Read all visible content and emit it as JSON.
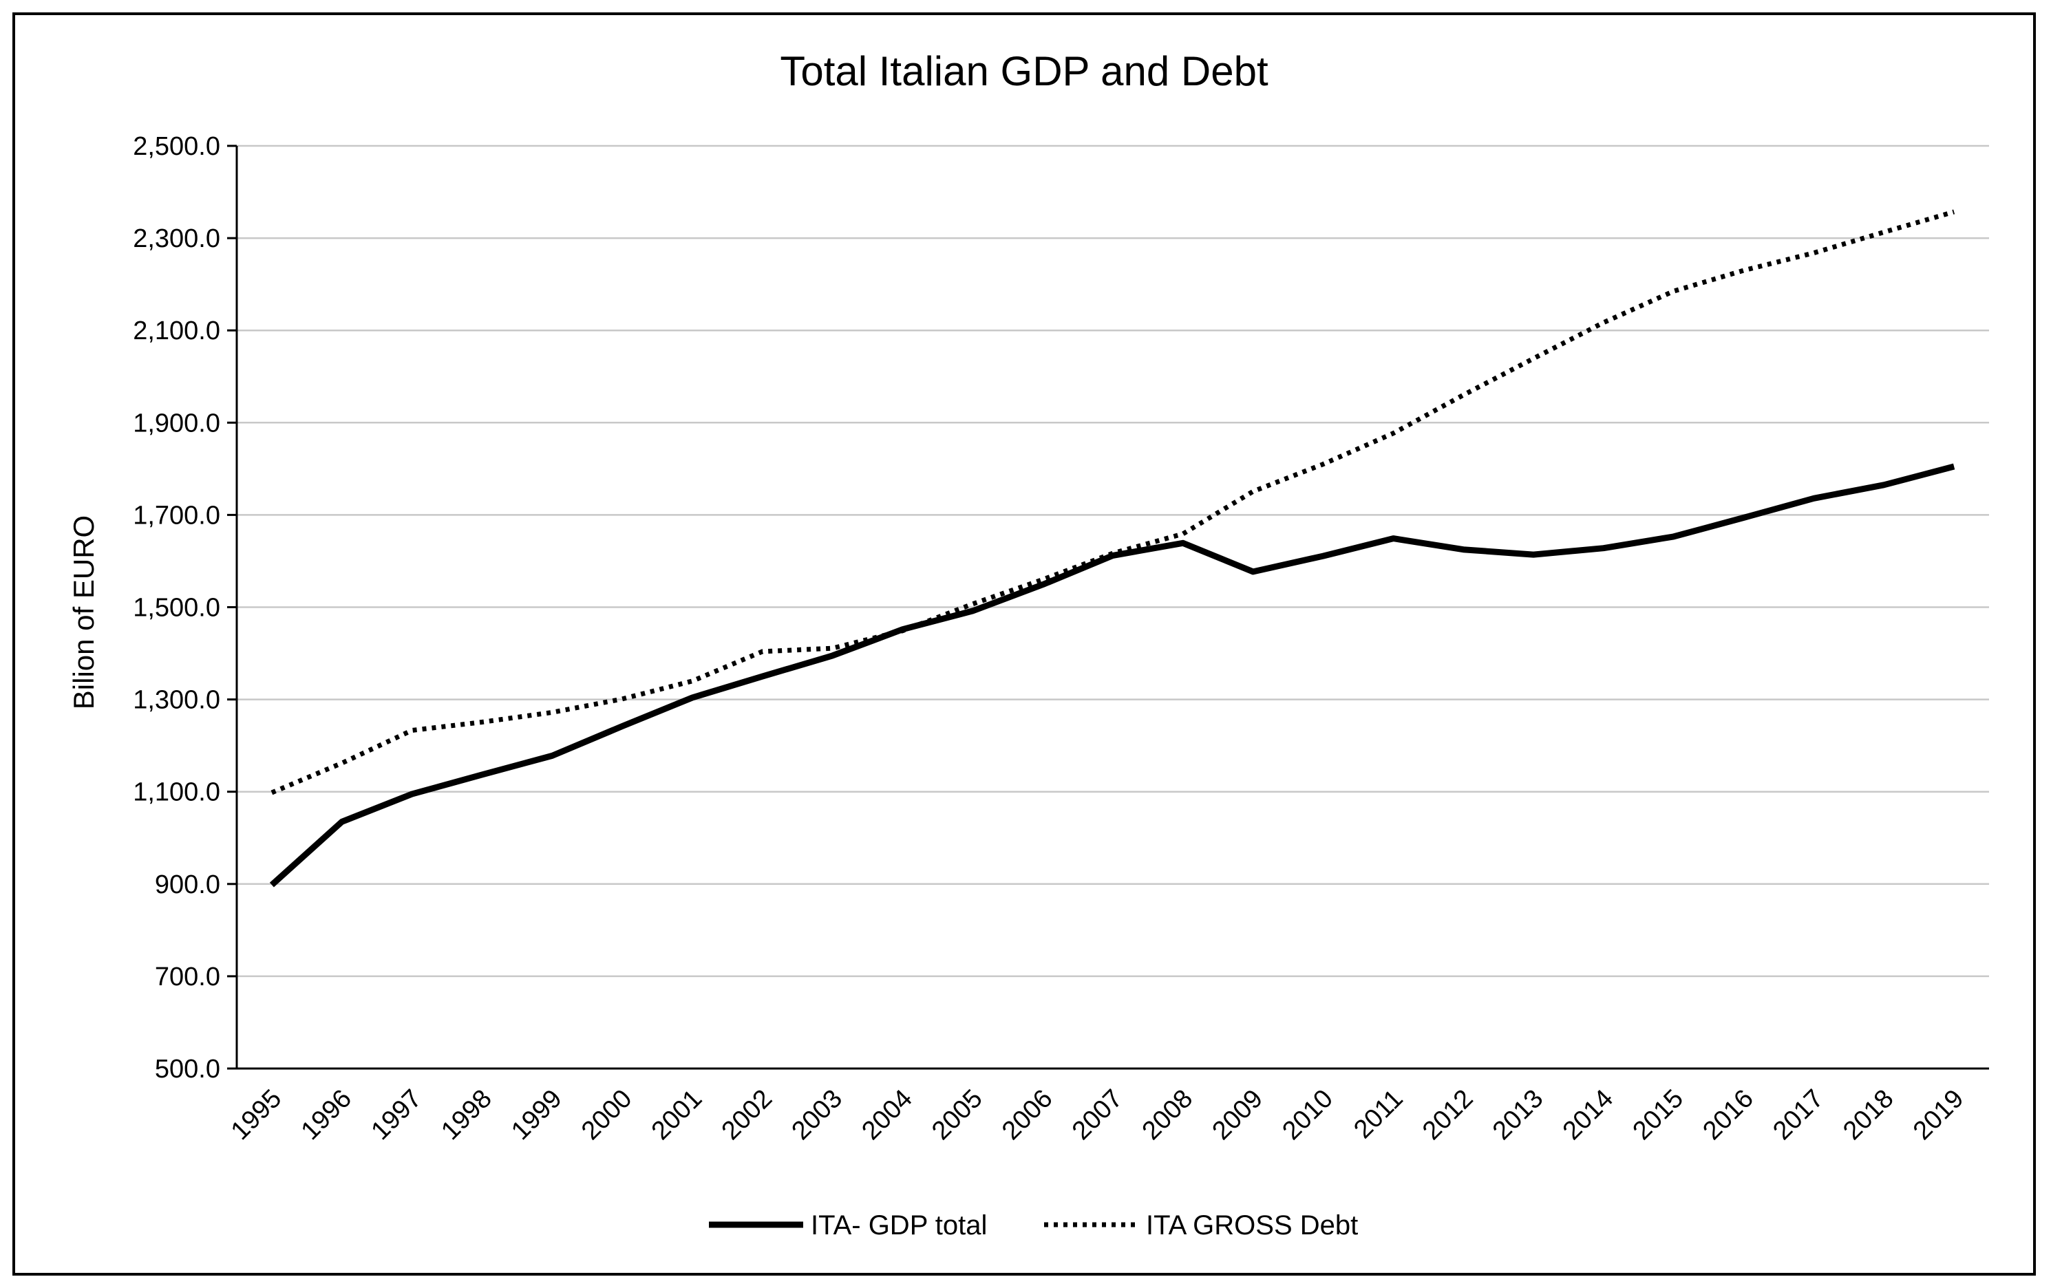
{
  "chart_data": {
    "type": "line",
    "title": "Total Italian GDP and Debt",
    "xlabel": "",
    "ylabel": "Bilion of  EURO",
    "ylim": [
      500,
      2500
    ],
    "yticks": [
      500,
      700,
      900,
      1100,
      1300,
      1500,
      1700,
      1900,
      2100,
      2300,
      2500
    ],
    "ytick_labels": [
      "500.0",
      "700.0",
      "900.0",
      "1,100.0",
      "1,300.0",
      "1,500.0",
      "1,700.0",
      "1,900.0",
      "2,100.0",
      "2,300.0",
      "2,500.0"
    ],
    "grid": true,
    "legend_position": "bottom",
    "x": [
      "1995",
      "1996",
      "1997",
      "1998",
      "1999",
      "2000",
      "2001",
      "2002",
      "2003",
      "2004",
      "2005",
      "2006",
      "2007",
      "2008",
      "2009",
      "2010",
      "2011",
      "2012",
      "2013",
      "2014",
      "2015",
      "2016",
      "2017",
      "2018",
      "2019"
    ],
    "series": [
      {
        "name": "ITA- GDP total",
        "style": "solid",
        "color": "#000000",
        "values": [
          898,
          1035,
          1095,
          1137,
          1178,
          1242,
          1304,
          1350,
          1395,
          1452,
          1492,
          1549,
          1612,
          1639,
          1577,
          1611,
          1649,
          1625,
          1614,
          1628,
          1653,
          1694,
          1736,
          1765,
          1805
        ]
      },
      {
        "name": "ITA GROSS Debt",
        "style": "dotted",
        "color": "#000000",
        "values": [
          1098,
          1162,
          1233,
          1251,
          1272,
          1301,
          1340,
          1404,
          1411,
          1449,
          1507,
          1560,
          1617,
          1659,
          1751,
          1810,
          1877,
          1960,
          2039,
          2117,
          2185,
          2230,
          2268,
          2313,
          2357
        ]
      }
    ]
  }
}
